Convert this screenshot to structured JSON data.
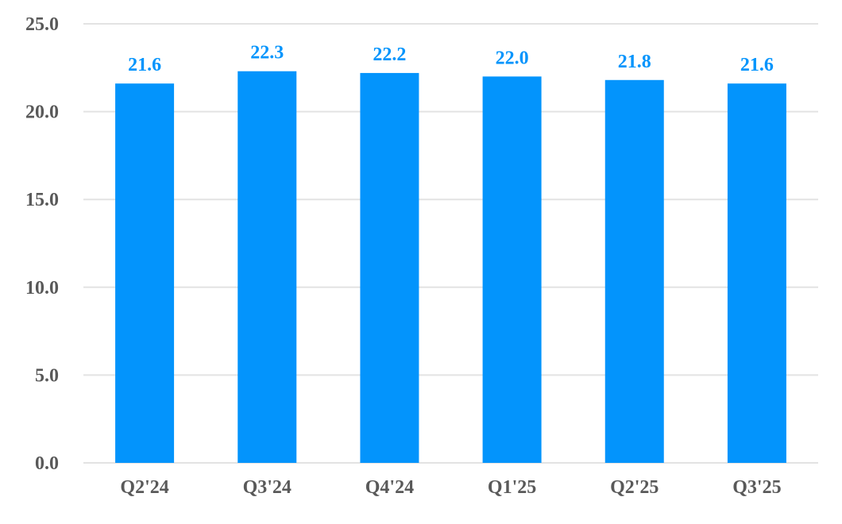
{
  "chart_data": {
    "type": "bar",
    "categories": [
      "Q2'24",
      "Q3'24",
      "Q4'24",
      "Q1'25",
      "Q2'25",
      "Q3'25"
    ],
    "values": [
      21.6,
      22.3,
      22.2,
      22.0,
      21.8,
      21.6
    ],
    "value_labels": [
      "21.6",
      "22.3",
      "22.2",
      "22.0",
      "21.8",
      "21.6"
    ],
    "ylim": [
      0,
      25
    ],
    "y_ticks": [
      0,
      5,
      10,
      15,
      20,
      25
    ],
    "y_tick_labels": [
      "0.0",
      "5.0",
      "10.0",
      "15.0",
      "20.0",
      "25.0"
    ],
    "grid": true,
    "legend": "none",
    "colors": {
      "bar": "#0394fc",
      "data_label": "#0394fc",
      "gridline": "#e3e3e3",
      "tick_label": "#595959"
    }
  }
}
